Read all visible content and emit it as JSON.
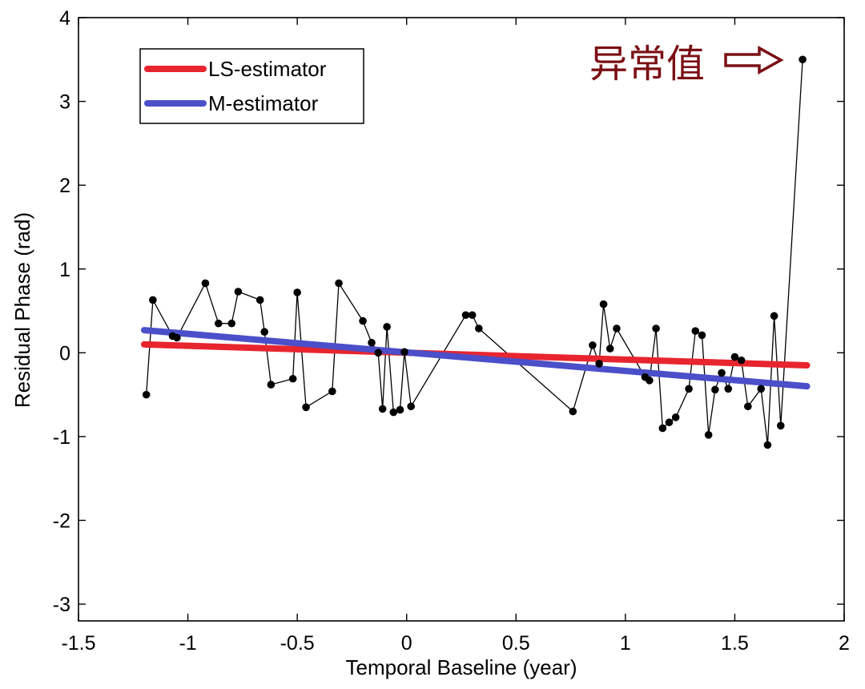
{
  "chart_data": {
    "type": "line",
    "title": "",
    "xlabel": "Temporal Baseline (year)",
    "ylabel": "Residual Phase (rad)",
    "xlim": [
      -1.5,
      2
    ],
    "ylim": [
      -3.2,
      4
    ],
    "xticks": [
      -1.5,
      -1,
      -0.5,
      0,
      0.5,
      1,
      1.5,
      2
    ],
    "xtick_labels": [
      "-1.5",
      "-1",
      "-0.5",
      "0",
      "0.5",
      "1",
      "1.5",
      "2"
    ],
    "yticks": [
      -3,
      -2,
      -1,
      0,
      1,
      2,
      3,
      4
    ],
    "ytick_labels": [
      "-3",
      "-2",
      "-1",
      "0",
      "1",
      "2",
      "3",
      "4"
    ],
    "grid": false,
    "legend_position": "top-left",
    "series": [
      {
        "kind": "observations",
        "color": "#000000",
        "points": [
          [
            -1.19,
            -0.5
          ],
          [
            -1.16,
            0.63
          ],
          [
            -1.07,
            0.2
          ],
          [
            -1.05,
            0.18
          ],
          [
            -0.92,
            0.83
          ],
          [
            -0.86,
            0.35
          ],
          [
            -0.8,
            0.35
          ],
          [
            -0.77,
            0.73
          ],
          [
            -0.67,
            0.63
          ],
          [
            -0.65,
            0.25
          ],
          [
            -0.62,
            -0.38
          ],
          [
            -0.52,
            -0.31
          ],
          [
            -0.5,
            0.72
          ],
          [
            -0.46,
            -0.65
          ],
          [
            -0.34,
            -0.46
          ],
          [
            -0.31,
            0.83
          ],
          [
            -0.2,
            0.38
          ],
          [
            -0.16,
            0.12
          ],
          [
            -0.13,
            0.0
          ],
          [
            -0.11,
            -0.67
          ],
          [
            -0.09,
            0.31
          ],
          [
            -0.06,
            -0.71
          ],
          [
            -0.03,
            -0.68
          ],
          [
            -0.01,
            0.01
          ],
          [
            0.02,
            -0.64
          ],
          [
            0.27,
            0.45
          ],
          [
            0.3,
            0.45
          ],
          [
            0.33,
            0.29
          ],
          [
            0.76,
            -0.7
          ],
          [
            0.85,
            0.09
          ],
          [
            0.88,
            -0.13
          ],
          [
            0.9,
            0.58
          ],
          [
            0.93,
            0.05
          ],
          [
            0.96,
            0.29
          ],
          [
            1.09,
            -0.29
          ],
          [
            1.11,
            -0.33
          ],
          [
            1.14,
            0.29
          ],
          [
            1.17,
            -0.9
          ],
          [
            1.2,
            -0.83
          ],
          [
            1.23,
            -0.77
          ],
          [
            1.29,
            -0.43
          ],
          [
            1.32,
            0.26
          ],
          [
            1.35,
            0.21
          ],
          [
            1.38,
            -0.98
          ],
          [
            1.41,
            -0.44
          ],
          [
            1.44,
            -0.24
          ],
          [
            1.47,
            -0.43
          ],
          [
            1.5,
            -0.05
          ],
          [
            1.53,
            -0.09
          ],
          [
            1.56,
            -0.64
          ],
          [
            1.62,
            -0.43
          ],
          [
            1.65,
            -1.1
          ],
          [
            1.68,
            0.44
          ],
          [
            1.71,
            -0.87
          ],
          [
            1.81,
            3.5
          ]
        ]
      },
      {
        "name": "LS-estimator",
        "color": "#e8252f",
        "points": [
          [
            -1.2,
            0.1
          ],
          [
            1.83,
            -0.15
          ]
        ]
      },
      {
        "name": "M-estimator",
        "color": "#4b4fc9",
        "points": [
          [
            -1.2,
            0.27
          ],
          [
            1.83,
            -0.4
          ]
        ]
      }
    ],
    "annotation": {
      "text": "异常值",
      "color": "#7a0f14",
      "target": [
        1.81,
        3.5
      ]
    }
  }
}
